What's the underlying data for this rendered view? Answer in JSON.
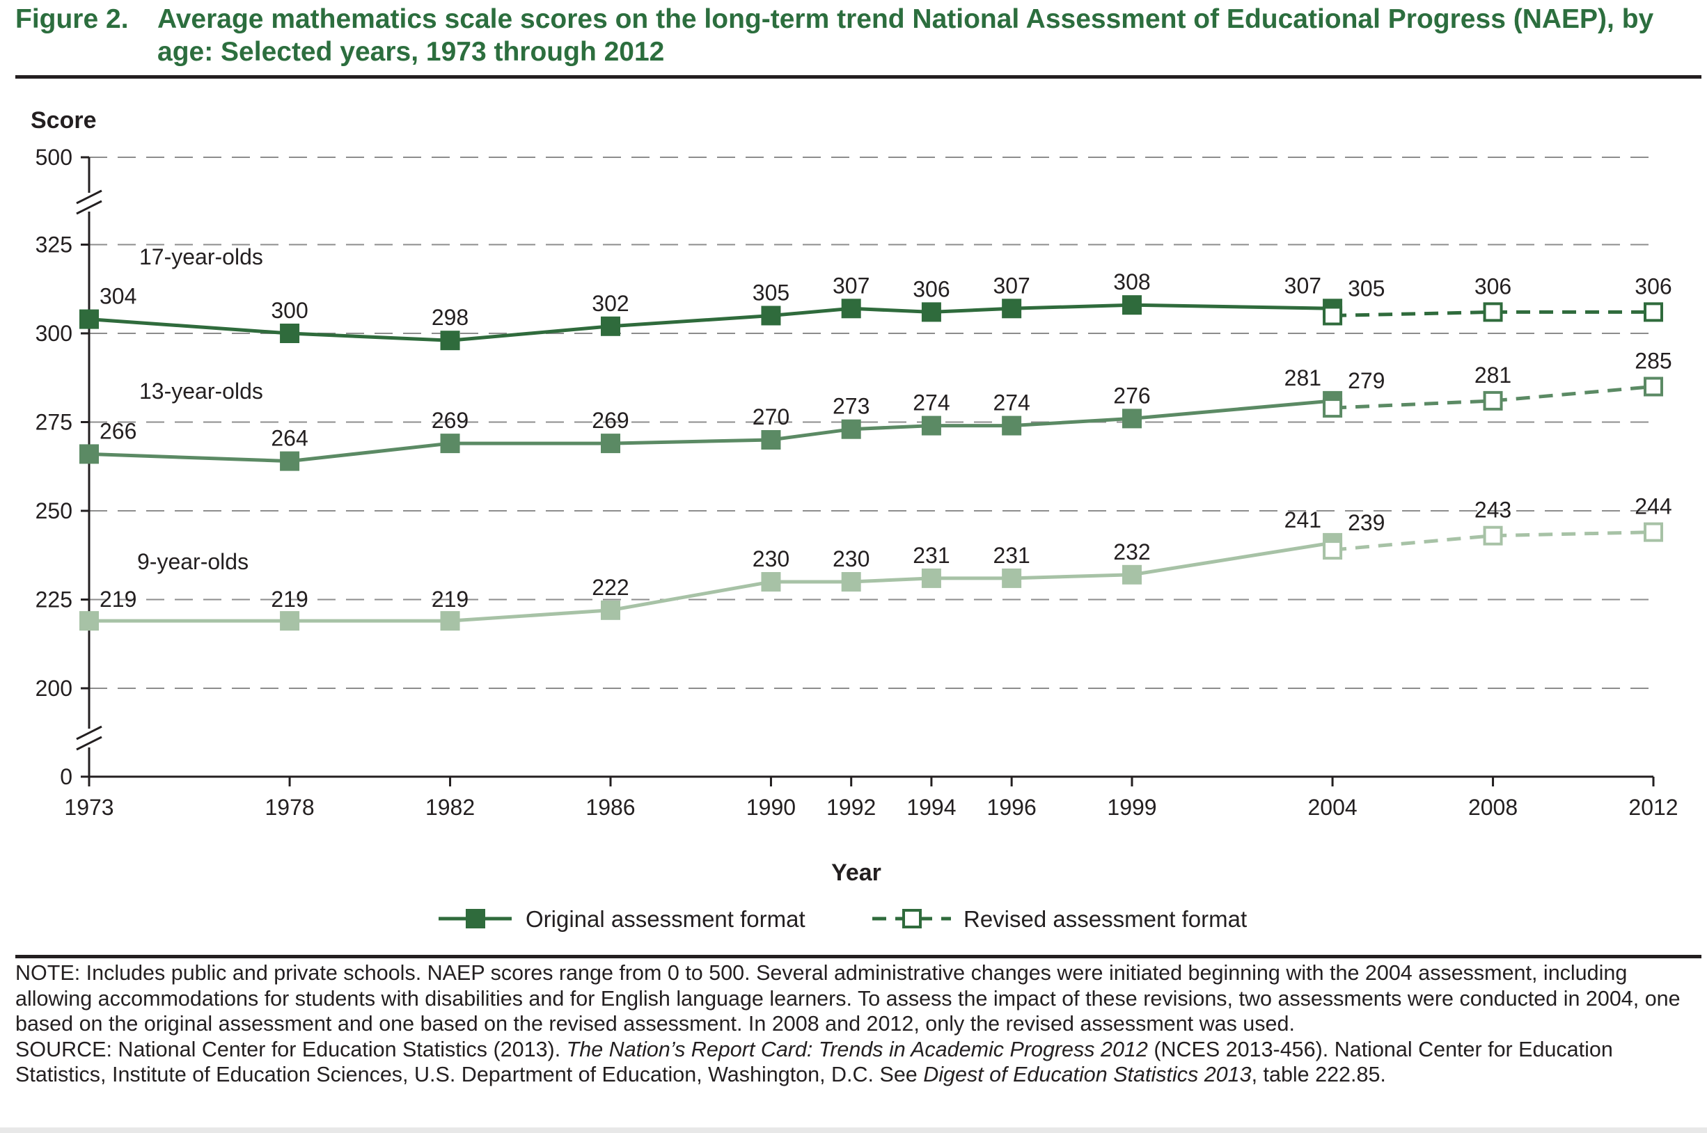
{
  "figure": {
    "label": "Figure 2.",
    "title": "Average mathematics scale scores on the long-term trend National Assessment of Educational Progress (NAEP), by age: Selected years, 1973 through 2012"
  },
  "chart_data": {
    "type": "line",
    "ylabel": "Score",
    "xlabel": "Year",
    "y_ticks": [
      0,
      200,
      225,
      250,
      275,
      300,
      325,
      500
    ],
    "y_visible_range": [
      200,
      325
    ],
    "y_axis_breaks": [
      "between 325 and 500",
      "between 0 and 200"
    ],
    "x": [
      1973,
      1978,
      1982,
      1986,
      1990,
      1992,
      1994,
      1996,
      1999,
      2004,
      2008,
      2012
    ],
    "grid": "dashed horizontal",
    "series": [
      {
        "name": "17-year-olds",
        "original": {
          "x": [
            1973,
            1978,
            1982,
            1986,
            1990,
            1992,
            1994,
            1996,
            1999,
            2004
          ],
          "values": [
            304,
            300,
            298,
            302,
            305,
            307,
            306,
            307,
            308,
            307
          ]
        },
        "revised": {
          "x": [
            2004,
            2008,
            2012
          ],
          "values": [
            305,
            306,
            306
          ]
        }
      },
      {
        "name": "13-year-olds",
        "original": {
          "x": [
            1973,
            1978,
            1982,
            1986,
            1990,
            1992,
            1994,
            1996,
            1999,
            2004
          ],
          "values": [
            266,
            264,
            269,
            269,
            270,
            273,
            274,
            274,
            276,
            281
          ]
        },
        "revised": {
          "x": [
            2004,
            2008,
            2012
          ],
          "values": [
            279,
            281,
            285
          ]
        }
      },
      {
        "name": "9-year-olds",
        "original": {
          "x": [
            1973,
            1978,
            1982,
            1986,
            1990,
            1992,
            1994,
            1996,
            1999,
            2004
          ],
          "values": [
            219,
            219,
            219,
            222,
            230,
            230,
            231,
            231,
            232,
            241
          ]
        },
        "revised": {
          "x": [
            2004,
            2008,
            2012
          ],
          "values": [
            239,
            243,
            244
          ]
        }
      }
    ],
    "legend": {
      "placement": "bottom-center",
      "original": "Original assessment format",
      "revised": "Revised assessment format"
    },
    "colors": {
      "17-year-olds": "#2f6b3c",
      "13-year-olds": "#5b8a64",
      "9-year-olds": "#a7c2a6",
      "title": "#2c6e3e"
    }
  },
  "notes": {
    "note": "NOTE: Includes public and private schools. NAEP scores range from 0 to 500. Several administrative changes were initiated beginning with the 2004 assessment, including allowing accommodations for students with disabilities and for English language learners. To assess the impact of these revisions, two assessments were conducted in 2004, one based on the original assessment and one based on the revised assessment. In 2008 and 2012, only the revised assessment was used.",
    "source_prefix": "SOURCE: National Center for Education Statistics (2013). ",
    "source_title": "The Nation’s Report Card: Trends in Academic Progress 2012",
    "source_middle": " (NCES 2013-456). National Center for Education Statistics, Institute of Education Sciences, U.S. Department of Education, Washington, D.C. See ",
    "source_digest": "Digest of Education Statistics 2013",
    "source_suffix": ", table 222.85."
  }
}
